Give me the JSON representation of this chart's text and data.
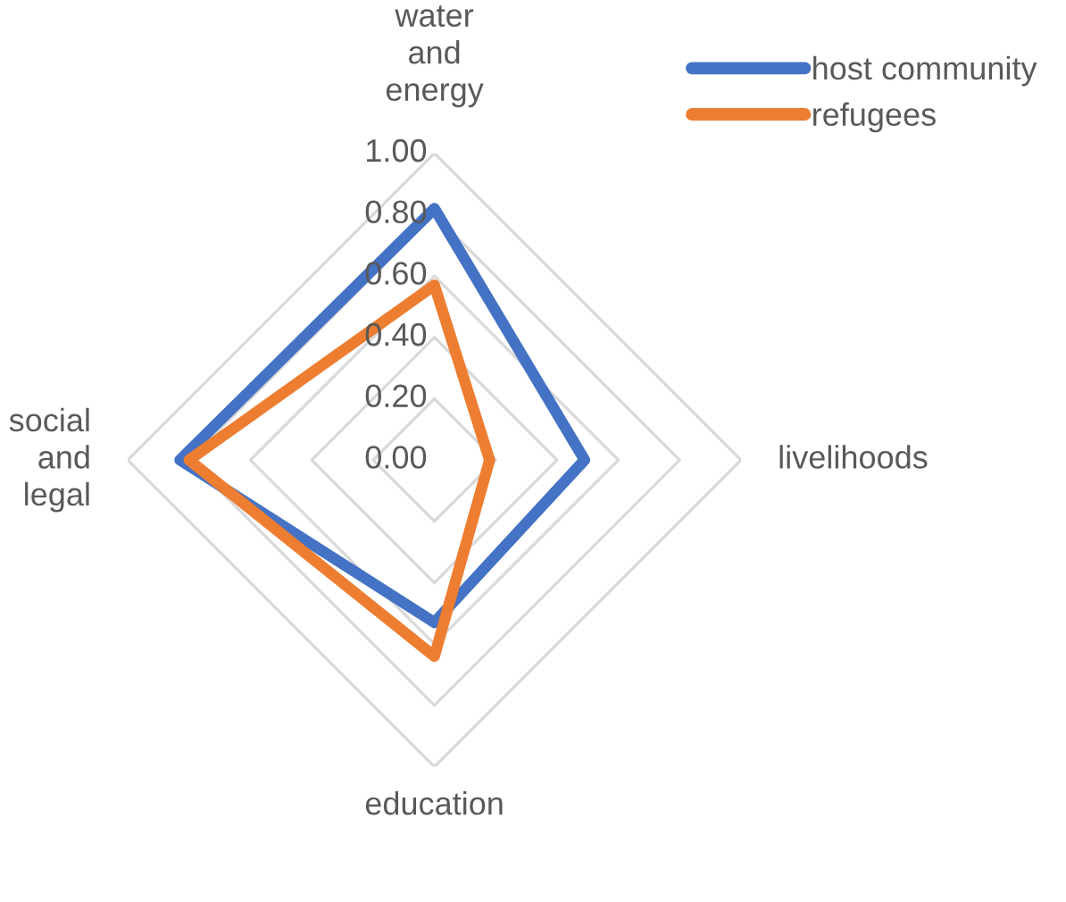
{
  "chart_data": {
    "type": "radar",
    "categories": [
      "water and energy",
      "livelihoods",
      "education",
      "social and legal"
    ],
    "series": [
      {
        "name": "host community",
        "color": "#4472c4",
        "values": [
          0.82,
          0.49,
          0.53,
          0.83
        ]
      },
      {
        "name": "refugees",
        "color": "#ed7d31",
        "values": [
          0.57,
          0.18,
          0.64,
          0.8
        ]
      }
    ],
    "ylim": [
      0,
      1
    ],
    "yticks": [
      {
        "value": 0,
        "label": "0.00"
      },
      {
        "value": 0.2,
        "label": "0.20"
      },
      {
        "value": 0.4,
        "label": "0.40"
      },
      {
        "value": 0.6,
        "label": "0.60"
      },
      {
        "value": 0.8,
        "label": "0.80"
      },
      {
        "value": 1,
        "label": "1.00"
      }
    ],
    "grid": true,
    "legend": "top right",
    "marker": "none"
  }
}
